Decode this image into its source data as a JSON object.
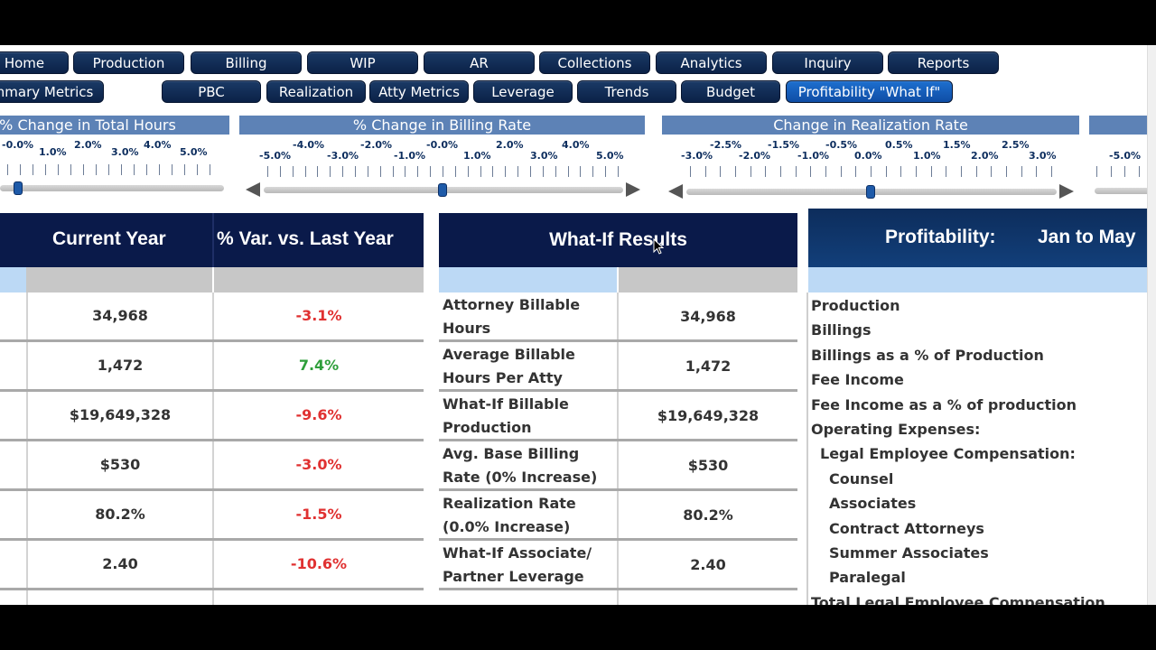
{
  "nav_row1": [
    {
      "label": "Home"
    },
    {
      "label": "Production"
    },
    {
      "label": "Billing"
    },
    {
      "label": "WIP"
    },
    {
      "label": "AR"
    },
    {
      "label": "Collections"
    },
    {
      "label": "Analytics"
    },
    {
      "label": "Inquiry"
    },
    {
      "label": "Reports"
    }
  ],
  "nav_row2": [
    {
      "label": "Summary Metrics"
    },
    {
      "label": "PBC"
    },
    {
      "label": "Realization"
    },
    {
      "label": "Atty Metrics"
    },
    {
      "label": "Leverage"
    },
    {
      "label": "Trends"
    },
    {
      "label": "Budget"
    },
    {
      "label": "Profitability \"What If\""
    }
  ],
  "sliders": [
    {
      "title": "% Change in Total Hours",
      "top_labels": [
        "-0.0%",
        "2.0%",
        "4.0%"
      ],
      "bottom_labels": [
        "1.0%",
        "3.0%",
        "5.0%"
      ],
      "value": 0
    },
    {
      "title": "% Change in Billing Rate",
      "top_labels": [
        "-4.0%",
        "-2.0%",
        "-0.0%",
        "2.0%",
        "4.0%"
      ],
      "bottom_labels": [
        "-5.0%",
        "-3.0%",
        "-1.0%",
        "1.0%",
        "3.0%",
        "5.0%"
      ],
      "value": 0
    },
    {
      "title": "Change in Realization Rate",
      "top_labels": [
        "-2.5%",
        "-1.5%",
        "-0.5%",
        "0.5%",
        "1.5%",
        "2.5%"
      ],
      "bottom_labels": [
        "-3.0%",
        "-2.0%",
        "-1.0%",
        "0.0%",
        "1.0%",
        "2.0%",
        "3.0%"
      ],
      "value": 0
    },
    {
      "bottom_labels": [
        "-5.0%"
      ]
    }
  ],
  "left_table": {
    "headers": [
      "Current Year",
      "% Var. vs. Last Year"
    ],
    "rows": [
      {
        "value": "34,968",
        "var": "-3.1%",
        "var_status": "negative"
      },
      {
        "value": "1,472",
        "var": "7.4%",
        "var_status": "positive"
      },
      {
        "value": "$19,649,328",
        "var": "-9.6%",
        "var_status": "negative"
      },
      {
        "value": "$530",
        "var": "-3.0%",
        "var_status": "negative"
      },
      {
        "value": "80.2%",
        "var": "-1.5%",
        "var_status": "negative"
      },
      {
        "value": "2.40",
        "var": "-10.6%",
        "var_status": "negative"
      }
    ]
  },
  "whatif": {
    "title": "What-If Results",
    "rows": [
      {
        "label1": "Attorney Billable",
        "label2": "Hours",
        "value": "34,968"
      },
      {
        "label1": "Average Billable",
        "label2": "Hours Per Atty",
        "value": "1,472"
      },
      {
        "label1": "What-If Billable",
        "label2": "Production",
        "value": "$19,649,328"
      },
      {
        "label1": "Avg. Base Billing",
        "label2": "Rate (0% Increase)",
        "value": "$530"
      },
      {
        "label1": "Realization Rate",
        "label2": "(0.0% Increase)",
        "value": "80.2%"
      },
      {
        "label1": "What-If Associate/",
        "label2": "Partner Leverage",
        "value": "2.40"
      }
    ]
  },
  "profitability": {
    "title": "Profitability:",
    "period": "Jan to May",
    "items": [
      {
        "label": "Production",
        "indent": 0
      },
      {
        "label": "Billings",
        "indent": 0
      },
      {
        "label": "Billings as a % of Production",
        "indent": 0
      },
      {
        "label": "Fee Income",
        "indent": 0
      },
      {
        "label": "Fee Income as a % of production",
        "indent": 0
      },
      {
        "label": "Operating Expenses:",
        "indent": 0
      },
      {
        "label": "Legal Employee Compensation:",
        "indent": 1
      },
      {
        "label": "Counsel",
        "indent": 2
      },
      {
        "label": "Associates",
        "indent": 2
      },
      {
        "label": "Contract Attorneys",
        "indent": 2
      },
      {
        "label": "Summer Associates",
        "indent": 2
      },
      {
        "label": "Paralegal",
        "indent": 2
      },
      {
        "label": "Total Legal Employee Compensation",
        "indent": 0
      }
    ]
  },
  "colors": {
    "negative": "#e03131",
    "positive": "#2e9e3a",
    "header_navy": "#0a1a4a",
    "accent_blue": "#1d6fcf"
  }
}
